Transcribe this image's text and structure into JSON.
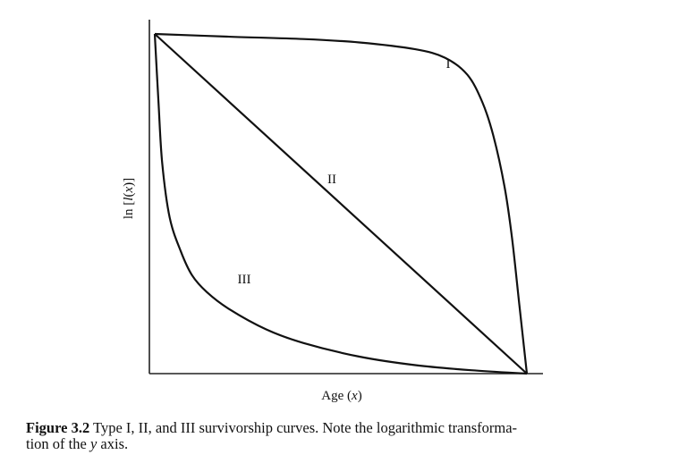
{
  "chart_data": {
    "type": "line",
    "xlabel_prefix": "Age (",
    "xlabel_var": "x",
    "xlabel_suffix": ")",
    "ylabel_prefix": "ln [",
    "ylabel_var": "l",
    "ylabel_mid": "(",
    "ylabel_var2": "x",
    "ylabel_suffix": ")]",
    "xlim": [
      0,
      1
    ],
    "ylim": [
      0,
      1
    ],
    "ticks": "none",
    "grid": false,
    "series": [
      {
        "name": "I",
        "x": [
          0,
          0.2,
          0.4,
          0.55,
          0.7,
          0.78,
          0.84,
          0.88,
          0.91,
          0.94,
          0.96,
          0.98,
          1.0
        ],
        "y": [
          1,
          0.992,
          0.985,
          0.975,
          0.955,
          0.93,
          0.88,
          0.8,
          0.7,
          0.55,
          0.4,
          0.2,
          0
        ]
      },
      {
        "name": "II",
        "x": [
          0,
          1
        ],
        "y": [
          1,
          0
        ]
      },
      {
        "name": "III",
        "x": [
          0,
          0.01,
          0.02,
          0.04,
          0.07,
          0.1,
          0.14,
          0.2,
          0.3,
          0.4,
          0.55,
          0.7,
          0.85,
          1.0
        ],
        "y": [
          1,
          0.8,
          0.62,
          0.46,
          0.36,
          0.29,
          0.24,
          0.19,
          0.13,
          0.09,
          0.05,
          0.025,
          0.01,
          0
        ]
      }
    ]
  },
  "caption": {
    "fig_label": "Figure 3.2",
    "line1": "Type I, II, and III survivorship curves. Note the logarithmic transforma-",
    "line2_prefix": "tion of the ",
    "line2_var": "y",
    "line2_suffix": " axis."
  }
}
